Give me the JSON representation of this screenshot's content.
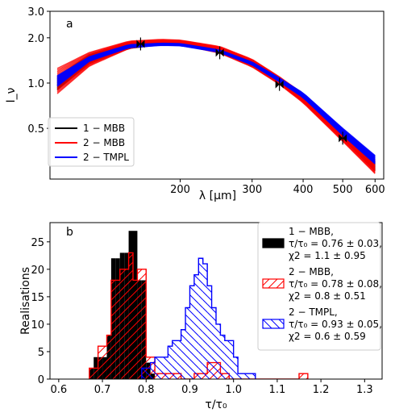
{
  "chart_data": [
    {
      "type": "line",
      "panel_label": "a",
      "xlabel": "λ [μm]",
      "ylabel": "I_ν",
      "xscale": "log",
      "yscale": "log",
      "xlim": [
        96,
        630
      ],
      "ylim": [
        0.23,
        3.0
      ],
      "xticks": [
        200,
        300,
        400,
        500,
        600
      ],
      "yticks": [
        0.5,
        1.0,
        2.0,
        3.0
      ],
      "ytick_labels": [
        "0.5",
        "1.0",
        "2.0",
        "3.0"
      ],
      "legend": {
        "loc": "lower-left",
        "entries": [
          {
            "label": "1 − MBB",
            "color": "#000000"
          },
          {
            "label": "2 − MBB",
            "color": "#ff0000"
          },
          {
            "label": "2 − TMPL",
            "color": "#0000ff"
          }
        ]
      },
      "observations": {
        "x": [
          160,
          250,
          350,
          500
        ],
        "y": [
          1.82,
          1.59,
          0.98,
          0.43
        ]
      },
      "series": [
        {
          "name": "1 − MBB",
          "color": "#000000",
          "x": [
            100,
            120,
            150,
            180,
            200,
            250,
            300,
            350,
            400,
            500,
            600
          ],
          "y_low": [
            0.9,
            1.35,
            1.7,
            1.8,
            1.8,
            1.6,
            1.3,
            1.0,
            0.76,
            0.43,
            0.26
          ],
          "y_high": [
            1.1,
            1.55,
            1.85,
            1.93,
            1.92,
            1.72,
            1.42,
            1.08,
            0.83,
            0.47,
            0.3
          ]
        },
        {
          "name": "2 − MBB",
          "color": "#ff0000",
          "x": [
            100,
            120,
            150,
            180,
            200,
            250,
            300,
            350,
            400,
            500,
            600
          ],
          "y_low": [
            0.85,
            1.3,
            1.7,
            1.82,
            1.8,
            1.58,
            1.28,
            0.98,
            0.74,
            0.41,
            0.25
          ],
          "y_high": [
            1.25,
            1.6,
            1.9,
            1.95,
            1.93,
            1.75,
            1.44,
            1.1,
            0.85,
            0.49,
            0.31
          ]
        },
        {
          "name": "2 − TMPL",
          "color": "#0000ff",
          "x": [
            100,
            120,
            150,
            180,
            200,
            250,
            300,
            350,
            400,
            500,
            600
          ],
          "y_low": [
            0.95,
            1.4,
            1.72,
            1.78,
            1.77,
            1.6,
            1.32,
            1.02,
            0.8,
            0.45,
            0.29
          ],
          "y_high": [
            1.12,
            1.5,
            1.8,
            1.84,
            1.83,
            1.66,
            1.38,
            1.08,
            0.86,
            0.5,
            0.33
          ]
        }
      ]
    },
    {
      "type": "bar",
      "subtype": "histogram",
      "panel_label": "b",
      "xlabel": "τ/τ₀",
      "ylabel": "Realisations",
      "xlim": [
        0.58,
        1.34
      ],
      "ylim": [
        0,
        28.5
      ],
      "xticks": [
        0.6,
        0.7,
        0.8,
        0.9,
        1.0,
        1.1,
        1.2,
        1.3
      ],
      "yticks": [
        0,
        5,
        10,
        15,
        20,
        25
      ],
      "legend": {
        "loc": "upper-right",
        "entries": [
          {
            "lines": [
              "1 − MBB,",
              "τ/τ₀ = 0.76 ± 0.03,",
              "χ2 = 1.1 ± 0.95"
            ],
            "style": "solid",
            "color": "#000000"
          },
          {
            "lines": [
              "2 − MBB,",
              "τ/τ₀ = 0.78 ± 0.08,",
              "χ2 = 0.8 ± 0.51"
            ],
            "style": "hatch-forward",
            "color": "#ff0000"
          },
          {
            "lines": [
              "2 − TMPL,",
              "τ/τ₀ = 0.93 ± 0.05,",
              "χ2 = 0.6 ± 0.59"
            ],
            "style": "hatch-back",
            "color": "#0000ff"
          }
        ]
      },
      "series": [
        {
          "name": "1 − MBB",
          "color": "#000000",
          "style": "solid",
          "bin_edges": [
            0.67,
            0.68,
            0.69,
            0.7,
            0.71,
            0.72,
            0.73,
            0.74,
            0.75,
            0.76,
            0.77,
            0.78,
            0.79,
            0.8,
            0.81,
            0.82
          ],
          "counts": [
            2,
            4,
            4,
            4,
            8,
            22,
            22,
            23,
            23,
            27,
            27,
            18,
            18,
            3,
            1
          ]
        },
        {
          "name": "2 − MBB",
          "color": "#ff0000",
          "style": "hatch-forward",
          "bin_edges": [
            0.67,
            0.69,
            0.7,
            0.71,
            0.72,
            0.73,
            0.74,
            0.75,
            0.76,
            0.77,
            0.78,
            0.79,
            0.8,
            0.81,
            0.82,
            0.85,
            0.88,
            0.91,
            0.94,
            0.97,
            0.99,
            1.0,
            1.15,
            1.17
          ],
          "counts": [
            2,
            6,
            6,
            8,
            18,
            18,
            20,
            20,
            23,
            18,
            20,
            20,
            4,
            4,
            1,
            1,
            0,
            1,
            3,
            1,
            0,
            0,
            1
          ]
        },
        {
          "name": "2 − TMPL",
          "color": "#0000ff",
          "style": "hatch-back",
          "bin_edges": [
            0.79,
            0.81,
            0.82,
            0.83,
            0.84,
            0.85,
            0.86,
            0.87,
            0.88,
            0.89,
            0.9,
            0.91,
            0.92,
            0.93,
            0.94,
            0.95,
            0.96,
            0.97,
            0.98,
            0.99,
            1.0,
            1.01,
            1.02,
            1.03,
            1.04,
            1.05
          ],
          "counts": [
            2,
            3,
            4,
            4,
            4,
            6,
            7,
            7,
            9,
            13,
            17,
            19,
            22,
            21,
            17,
            13,
            10,
            8,
            7,
            7,
            4,
            1,
            1,
            1,
            1
          ]
        }
      ]
    }
  ]
}
